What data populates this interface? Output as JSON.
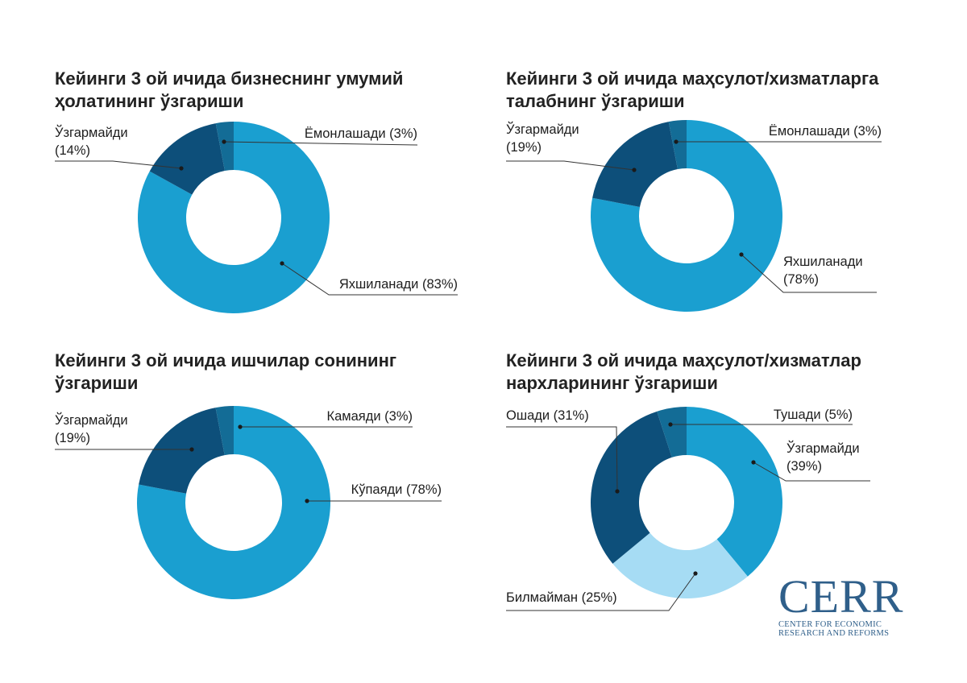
{
  "colors": {
    "light_blue": "#1a9fd0",
    "dark_blue": "#0d4f7a",
    "mid_blue": "#136c96",
    "pale_blue": "#a6dcf4",
    "leader": "#333333"
  },
  "chart_data": [
    {
      "type": "donut",
      "title": "Кейинги 3 ой ичида бизнеснинг умумий ҳолатининг ўзгариши",
      "title_lines": [
        "Кейинги 3 ой ичида бизнеснинг умумий",
        "ҳолатининг ўзгариши"
      ],
      "slices": [
        {
          "label": "Яхшиланади",
          "value": 83,
          "text_lines": [
            "Яхшиланади (83%)"
          ],
          "color": "#1a9fd0"
        },
        {
          "label": "Ўзгармайди",
          "value": 14,
          "text_lines": [
            "Ўзгармайди",
            "(14%)"
          ],
          "color": "#0d4f7a"
        },
        {
          "label": "Ёмонлашади",
          "value": 3,
          "text_lines": [
            "Ёмонлашади (3%)"
          ],
          "color": "#136c96"
        }
      ]
    },
    {
      "type": "donut",
      "title": "Кейинги 3 ой ичида маҳсулот/хизматларга талабнинг ўзгариши",
      "title_lines": [
        "Кейинги 3 ой ичида маҳсулот/хизматларга",
        "талабнинг ўзгариши"
      ],
      "slices": [
        {
          "label": "Яхшиланади",
          "value": 78,
          "text_lines": [
            "Яхшиланади",
            "(78%)"
          ],
          "color": "#1a9fd0"
        },
        {
          "label": "Ўзгармайди",
          "value": 19,
          "text_lines": [
            "Ўзгармайди",
            "(19%)"
          ],
          "color": "#0d4f7a"
        },
        {
          "label": "Ёмонлашади",
          "value": 3,
          "text_lines": [
            "Ёмонлашади (3%)"
          ],
          "color": "#136c96"
        }
      ]
    },
    {
      "type": "donut",
      "title": "Кейинги 3 ой ичида ишчилар сонининг ўзгариши",
      "title_lines": [
        "Кейинги 3 ой ичида ишчилар сонининг",
        "ўзгариши"
      ],
      "slices": [
        {
          "label": "Кўпаяди",
          "value": 78,
          "text_lines": [
            "Кўпаяди (78%)"
          ],
          "color": "#1a9fd0"
        },
        {
          "label": "Ўзгармайди",
          "value": 19,
          "text_lines": [
            "Ўзгармайди",
            "(19%)"
          ],
          "color": "#0d4f7a"
        },
        {
          "label": "Камаяди",
          "value": 3,
          "text_lines": [
            "Камаяди (3%)"
          ],
          "color": "#136c96"
        }
      ]
    },
    {
      "type": "donut",
      "title": "Кейинги 3 ой ичида маҳсулот/хизматлар нархларининг ўзгариши",
      "title_lines": [
        "Кейинги 3 ой ичида маҳсулот/хизматлар",
        "нархларининг ўзгариши"
      ],
      "slices": [
        {
          "label": "Ўзгармайди",
          "value": 39,
          "text_lines": [
            "Ўзгармайди",
            "(39%)"
          ],
          "color": "#1a9fd0"
        },
        {
          "label": "Билмайман",
          "value": 25,
          "text_lines": [
            "Билмайман (25%)"
          ],
          "color": "#a6dcf4"
        },
        {
          "label": "Ошади",
          "value": 31,
          "text_lines": [
            "Ошади (31%)"
          ],
          "color": "#0d4f7a"
        },
        {
          "label": "Тушади",
          "value": 5,
          "text_lines": [
            "Тушади (5%)"
          ],
          "color": "#136c96"
        }
      ]
    }
  ],
  "logo": {
    "main": "CERR",
    "sub_line1": "CENTER FOR ECONOMIC",
    "sub_line2": "RESEARCH AND REFORMS"
  }
}
